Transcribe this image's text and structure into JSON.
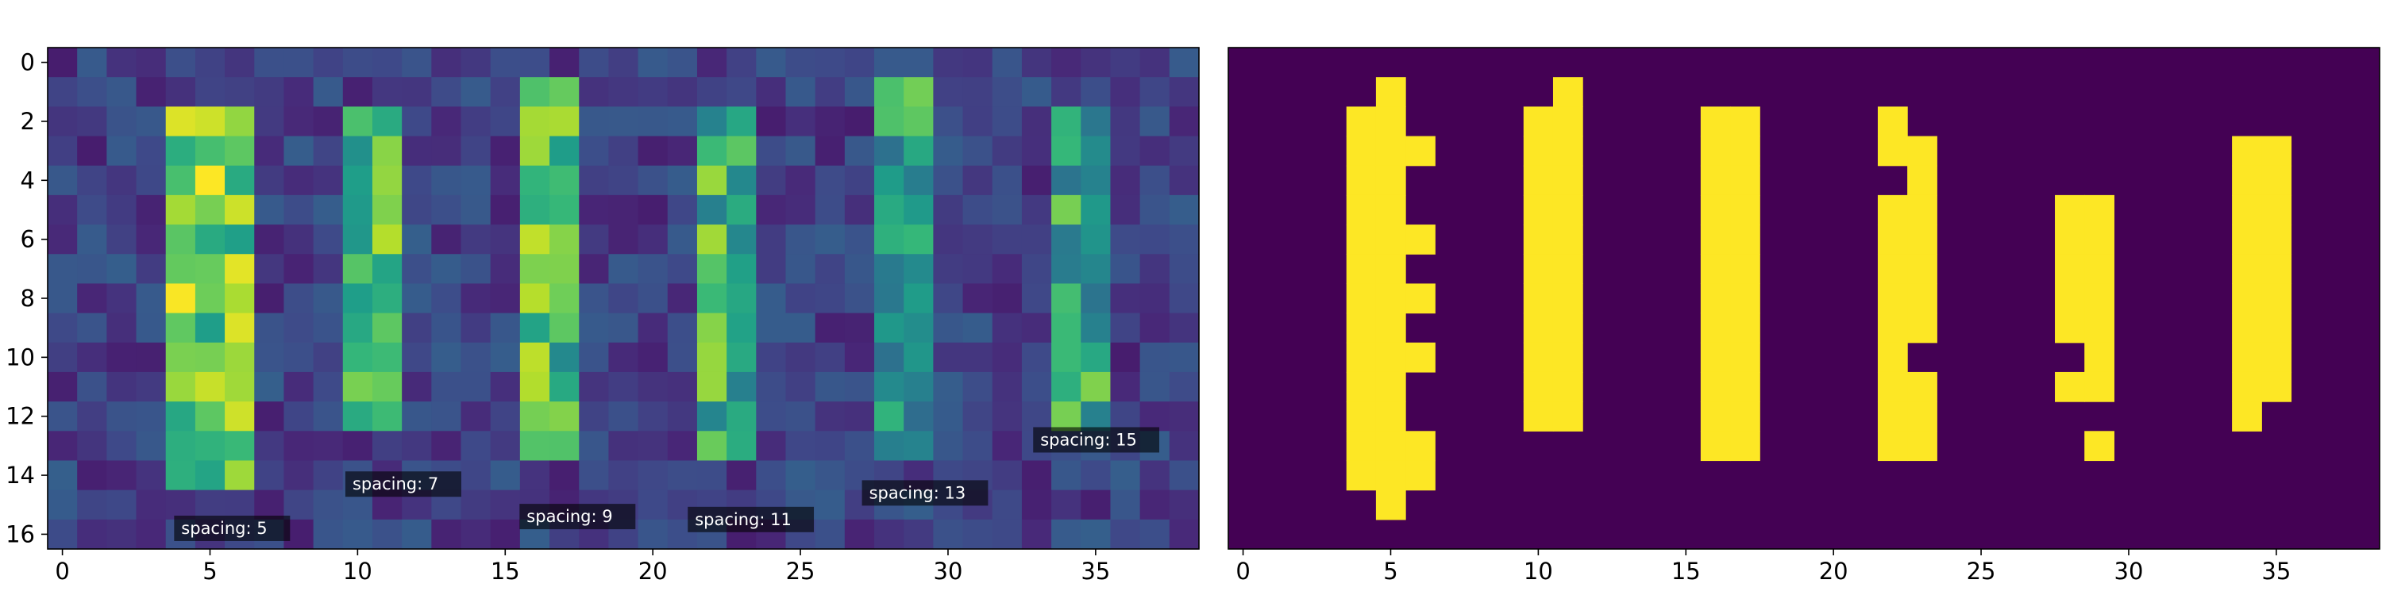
{
  "chart_data": [
    {
      "type": "heatmap",
      "title": "",
      "xlabel": "",
      "ylabel": "",
      "colormap": "viridis",
      "grid": false,
      "rows": 17,
      "cols": 39,
      "xlim": [
        -0.5,
        38.5
      ],
      "ylim": [
        16.5,
        -0.5
      ],
      "xticks": [
        0,
        5,
        10,
        15,
        20,
        25,
        30,
        35
      ],
      "xtick_labels": [
        "0",
        "5",
        "10",
        "15",
        "20",
        "25",
        "30",
        "35"
      ],
      "yticks": [
        0,
        2,
        4,
        6,
        8,
        10,
        12,
        14,
        16
      ],
      "ytick_labels": [
        "0",
        "2",
        "4",
        "6",
        "8",
        "10",
        "12",
        "14",
        "16"
      ],
      "value_range": [
        0,
        1
      ],
      "background_level": 0.08,
      "bars": [
        {
          "cols": [
            4,
            5,
            6
          ],
          "row_start": 2,
          "row_end": 14,
          "level": 0.9
        },
        {
          "cols": [
            10,
            11
          ],
          "row_start": 2,
          "row_end": 12,
          "level": 0.85
        },
        {
          "cols": [
            16,
            17
          ],
          "row_start": 1,
          "row_end": 13,
          "level": 0.82
        },
        {
          "cols": [
            22,
            23
          ],
          "row_start": 2,
          "row_end": 13,
          "level": 0.78
        },
        {
          "cols": [
            28,
            29
          ],
          "row_start": 1,
          "row_end": 13,
          "level": 0.7
        },
        {
          "cols": [
            34,
            35
          ],
          "row_start": 2,
          "row_end": 12,
          "level": 0.72
        }
      ],
      "annotations": [
        {
          "text": "spacing: 5",
          "x": 4.0,
          "y": 15.8
        },
        {
          "text": "spacing: 7",
          "x": 9.8,
          "y": 14.3
        },
        {
          "text": "spacing: 9",
          "x": 15.7,
          "y": 15.4
        },
        {
          "text": "spacing: 11",
          "x": 21.4,
          "y": 15.5
        },
        {
          "text": "spacing: 13",
          "x": 27.3,
          "y": 14.6
        },
        {
          "text": "spacing: 15",
          "x": 33.1,
          "y": 12.8
        }
      ]
    },
    {
      "type": "heatmap",
      "title": "",
      "xlabel": "",
      "ylabel": "",
      "colormap": "binary-viridis",
      "grid": false,
      "rows": 17,
      "cols": 39,
      "xlim": [
        -0.5,
        38.5
      ],
      "ylim": [
        16.5,
        -0.5
      ],
      "xticks": [
        0,
        5,
        10,
        15,
        20,
        25,
        30,
        35
      ],
      "xtick_labels": [
        "0",
        "5",
        "10",
        "15",
        "20",
        "25",
        "30",
        "35"
      ],
      "on_color": "#fde725",
      "off_color": "#440154",
      "cells_on": [
        [
          1,
          5
        ],
        [
          2,
          4
        ],
        [
          2,
          5
        ],
        [
          3,
          4
        ],
        [
          3,
          5
        ],
        [
          3,
          6
        ],
        [
          4,
          4
        ],
        [
          4,
          5
        ],
        [
          5,
          4
        ],
        [
          5,
          5
        ],
        [
          6,
          4
        ],
        [
          6,
          5
        ],
        [
          6,
          6
        ],
        [
          7,
          4
        ],
        [
          7,
          5
        ],
        [
          8,
          4
        ],
        [
          8,
          5
        ],
        [
          8,
          6
        ],
        [
          9,
          4
        ],
        [
          9,
          5
        ],
        [
          10,
          4
        ],
        [
          10,
          5
        ],
        [
          10,
          6
        ],
        [
          11,
          4
        ],
        [
          11,
          5
        ],
        [
          12,
          4
        ],
        [
          12,
          5
        ],
        [
          13,
          4
        ],
        [
          13,
          5
        ],
        [
          13,
          6
        ],
        [
          14,
          4
        ],
        [
          14,
          5
        ],
        [
          14,
          6
        ],
        [
          15,
          5
        ],
        [
          1,
          11
        ],
        [
          2,
          10
        ],
        [
          2,
          11
        ],
        [
          3,
          10
        ],
        [
          3,
          11
        ],
        [
          4,
          10
        ],
        [
          4,
          11
        ],
        [
          5,
          10
        ],
        [
          5,
          11
        ],
        [
          6,
          10
        ],
        [
          6,
          11
        ],
        [
          7,
          10
        ],
        [
          7,
          11
        ],
        [
          8,
          10
        ],
        [
          8,
          11
        ],
        [
          9,
          10
        ],
        [
          9,
          11
        ],
        [
          10,
          10
        ],
        [
          10,
          11
        ],
        [
          11,
          10
        ],
        [
          11,
          11
        ],
        [
          12,
          10
        ],
        [
          12,
          11
        ],
        [
          2,
          16
        ],
        [
          2,
          17
        ],
        [
          3,
          16
        ],
        [
          3,
          17
        ],
        [
          4,
          16
        ],
        [
          4,
          17
        ],
        [
          5,
          16
        ],
        [
          5,
          17
        ],
        [
          6,
          16
        ],
        [
          6,
          17
        ],
        [
          7,
          16
        ],
        [
          7,
          17
        ],
        [
          8,
          16
        ],
        [
          8,
          17
        ],
        [
          9,
          16
        ],
        [
          9,
          17
        ],
        [
          10,
          16
        ],
        [
          10,
          17
        ],
        [
          11,
          16
        ],
        [
          11,
          17
        ],
        [
          12,
          16
        ],
        [
          12,
          17
        ],
        [
          13,
          16
        ],
        [
          13,
          17
        ],
        [
          2,
          22
        ],
        [
          3,
          22
        ],
        [
          3,
          23
        ],
        [
          4,
          23
        ],
        [
          5,
          22
        ],
        [
          5,
          23
        ],
        [
          6,
          22
        ],
        [
          6,
          23
        ],
        [
          7,
          22
        ],
        [
          7,
          23
        ],
        [
          8,
          22
        ],
        [
          8,
          23
        ],
        [
          9,
          22
        ],
        [
          9,
          23
        ],
        [
          10,
          22
        ],
        [
          11,
          22
        ],
        [
          11,
          23
        ],
        [
          12,
          22
        ],
        [
          12,
          23
        ],
        [
          13,
          22
        ],
        [
          13,
          23
        ],
        [
          5,
          28
        ],
        [
          5,
          29
        ],
        [
          6,
          28
        ],
        [
          6,
          29
        ],
        [
          7,
          28
        ],
        [
          7,
          29
        ],
        [
          8,
          28
        ],
        [
          8,
          29
        ],
        [
          9,
          28
        ],
        [
          9,
          29
        ],
        [
          10,
          29
        ],
        [
          11,
          28
        ],
        [
          11,
          29
        ],
        [
          13,
          29
        ],
        [
          3,
          34
        ],
        [
          3,
          35
        ],
        [
          4,
          34
        ],
        [
          4,
          35
        ],
        [
          5,
          34
        ],
        [
          5,
          35
        ],
        [
          6,
          34
        ],
        [
          6,
          35
        ],
        [
          7,
          34
        ],
        [
          7,
          35
        ],
        [
          8,
          34
        ],
        [
          8,
          35
        ],
        [
          9,
          34
        ],
        [
          9,
          35
        ],
        [
          10,
          34
        ],
        [
          10,
          35
        ],
        [
          11,
          34
        ],
        [
          11,
          35
        ],
        [
          12,
          34
        ]
      ]
    }
  ]
}
